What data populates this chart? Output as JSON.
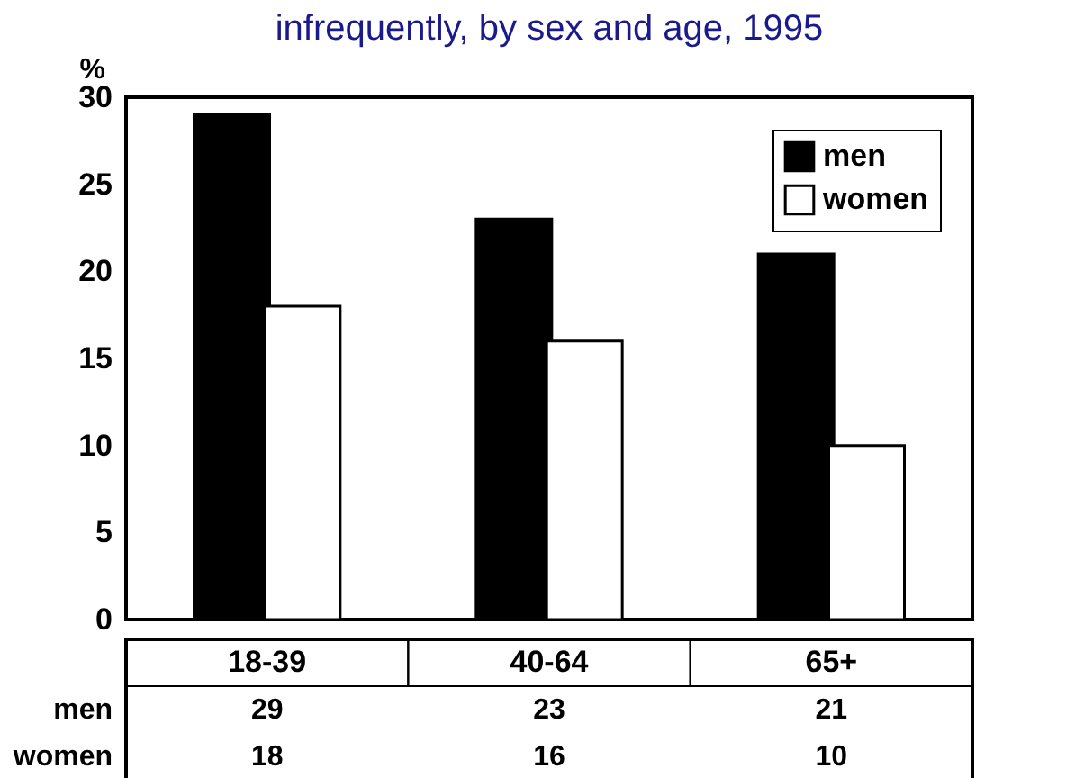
{
  "chart_data": {
    "type": "bar",
    "title": "infrequently, by sex and age, 1995",
    "ylabel": "%",
    "categories": [
      "18-39",
      "40-64",
      "65+"
    ],
    "series": [
      {
        "name": "men",
        "color": "#000000",
        "values": [
          29,
          23,
          21
        ]
      },
      {
        "name": "women",
        "color": "#ffffff",
        "values": [
          18,
          16,
          10
        ]
      }
    ],
    "ylim": [
      0,
      30
    ],
    "yticks": [
      0,
      5,
      10,
      15,
      20,
      25,
      30
    ],
    "grid": false,
    "legend": "top right",
    "data_labels": true
  }
}
